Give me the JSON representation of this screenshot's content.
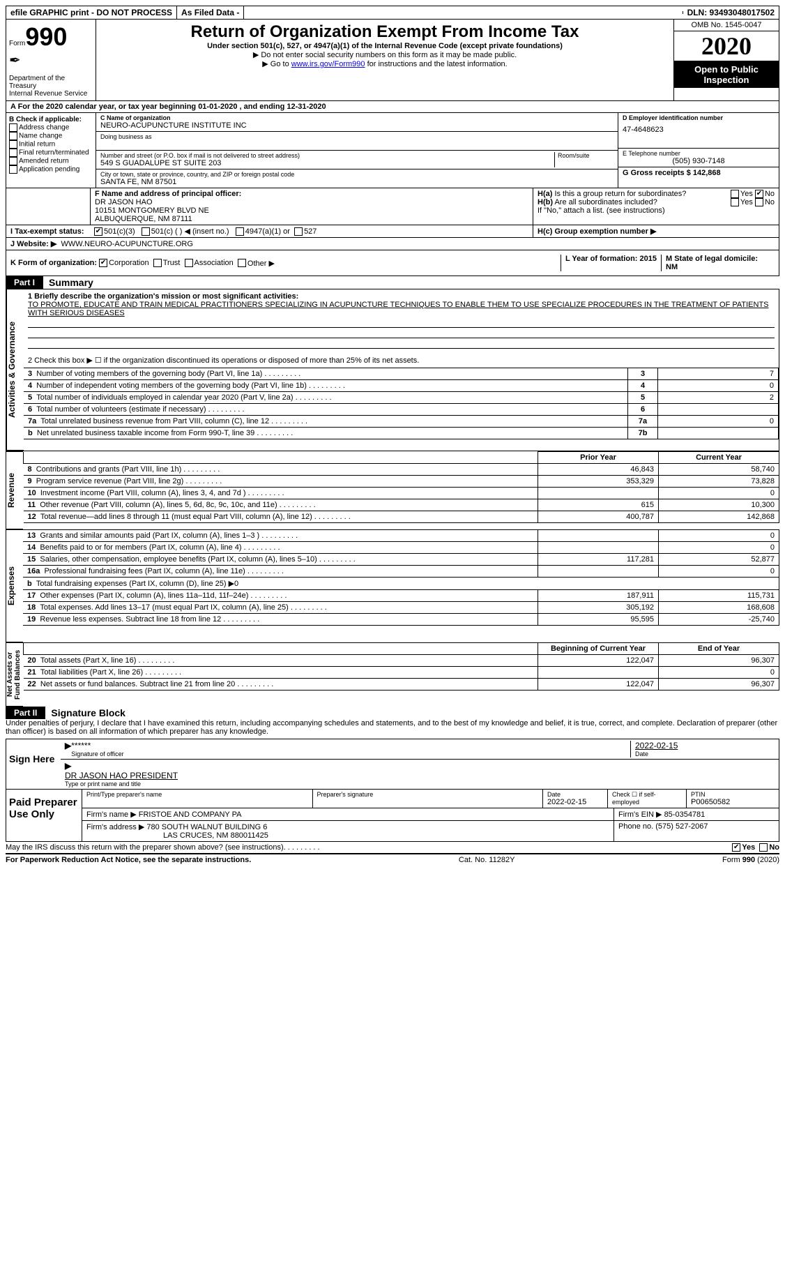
{
  "top": {
    "efile": "efile GRAPHIC print - DO NOT PROCESS",
    "asfiled": "As Filed Data -",
    "dln": "DLN: 93493048017502"
  },
  "header": {
    "form_word": "Form",
    "form_num": "990",
    "dept": "Department of the Treasury\nInternal Revenue Service",
    "title": "Return of Organization Exempt From Income Tax",
    "sub1": "Under section 501(c), 527, or 4947(a)(1) of the Internal Revenue Code (except private foundations)",
    "sub2": "▶ Do not enter social security numbers on this form as it may be made public.",
    "sub3_pre": "▶ Go to ",
    "sub3_link": "www.irs.gov/Form990",
    "sub3_post": " for instructions and the latest information.",
    "omb": "OMB No. 1545-0047",
    "year": "2020",
    "inspect": "Open to Public Inspection"
  },
  "secA": {
    "label": "A  For the 2020 calendar year, or tax year beginning 01-01-2020  , and ending 12-31-2020",
    "B_label": "B Check if applicable:",
    "B_opts": [
      "Address change",
      "Name change",
      "Initial return",
      "Final return/terminated",
      "Amended return",
      "Application pending"
    ],
    "C_name_label": "C Name of organization",
    "C_name": "NEURO-ACUPUNCTURE INSTITUTE INC",
    "dba_label": "Doing business as",
    "addr_label": "Number and street (or P.O. box if mail is not delivered to street address)",
    "room_label": "Room/suite",
    "addr": "549 S GUADALUPE ST SUITE 203",
    "city_label": "City or town, state or province, country, and ZIP or foreign postal code",
    "city": "SANTA FE, NM  87501",
    "D_label": "D Employer identification number",
    "D_val": "47-4648623",
    "E_label": "E Telephone number",
    "E_val": "(505) 930-7148",
    "G_label": "G Gross receipts $ 142,868",
    "F_label": "F  Name and address of principal officer:",
    "F_name": "DR JASON HAO",
    "F_addr1": "10151 MONTGOMERY BLVD NE",
    "F_addr2": "ALBUQUERQUE, NM  87111",
    "Ha_label": "H(a) Is this a group return for subordinates?",
    "Hb_label": "H(b) Are all subordinates included?",
    "H_note": "If \"No,\" attach a list. (see instructions)",
    "Hc_label": "H(c) Group exemption number ▶",
    "yes": "Yes",
    "no": "No"
  },
  "IJK": {
    "I_label": "I  Tax-exempt status:",
    "I_opts": [
      "501(c)(3)",
      "501(c) (  ) ◀ (insert no.)",
      "4947(a)(1) or",
      "527"
    ],
    "J_label": "J  Website: ▶",
    "J_val": "WWW.NEURO-ACUPUNCTURE.ORG",
    "K_label": "K Form of organization:",
    "K_opts": [
      "Corporation",
      "Trust",
      "Association",
      "Other ▶"
    ],
    "L_label": "L Year of formation: 2015",
    "M_label": "M State of legal domicile: NM"
  },
  "part1": {
    "tab": "Part I",
    "title": "Summary",
    "q1_label": "1 Briefly describe the organization's mission or most significant activities:",
    "q1_text": "TO PROMOTE, EDUCATE AND TRAIN MEDICAL PRACTITIONERS SPECIALIZING IN ACUPUNCTURE TECHNIQUES TO ENABLE THEM TO USE SPECIALIZE PROCEDURES IN THE TREATMENT OF PATIENTS WITH SERIOUS DISEASES",
    "q2": "2  Check this box ▶ ☐ if the organization discontinued its operations or disposed of more than 25% of its net assets.",
    "sideA": "Activities & Governance",
    "sideR": "Revenue",
    "sideE": "Expenses",
    "sideN": "Net Assets or Fund Balances",
    "rows_gov": [
      {
        "n": "3",
        "t": "Number of voting members of the governing body (Part VI, line 1a)",
        "box": "3",
        "v": "7"
      },
      {
        "n": "4",
        "t": "Number of independent voting members of the governing body (Part VI, line 1b)",
        "box": "4",
        "v": "0"
      },
      {
        "n": "5",
        "t": "Total number of individuals employed in calendar year 2020 (Part V, line 2a)",
        "box": "5",
        "v": "2"
      },
      {
        "n": "6",
        "t": "Total number of volunteers (estimate if necessary)",
        "box": "6",
        "v": ""
      },
      {
        "n": "7a",
        "t": "Total unrelated business revenue from Part VIII, column (C), line 12",
        "box": "7a",
        "v": "0"
      },
      {
        "n": "b",
        "t": "Net unrelated business taxable income from Form 990-T, line 39",
        "box": "7b",
        "v": ""
      }
    ],
    "col_prior": "Prior Year",
    "col_curr": "Current Year",
    "rows_rev": [
      {
        "n": "8",
        "t": "Contributions and grants (Part VIII, line 1h)",
        "p": "46,843",
        "c": "58,740"
      },
      {
        "n": "9",
        "t": "Program service revenue (Part VIII, line 2g)",
        "p": "353,329",
        "c": "73,828"
      },
      {
        "n": "10",
        "t": "Investment income (Part VIII, column (A), lines 3, 4, and 7d )",
        "p": "",
        "c": "0"
      },
      {
        "n": "11",
        "t": "Other revenue (Part VIII, column (A), lines 5, 6d, 8c, 9c, 10c, and 11e)",
        "p": "615",
        "c": "10,300"
      },
      {
        "n": "12",
        "t": "Total revenue—add lines 8 through 11 (must equal Part VIII, column (A), line 12)",
        "p": "400,787",
        "c": "142,868"
      }
    ],
    "rows_exp": [
      {
        "n": "13",
        "t": "Grants and similar amounts paid (Part IX, column (A), lines 1–3 )",
        "p": "",
        "c": "0"
      },
      {
        "n": "14",
        "t": "Benefits paid to or for members (Part IX, column (A), line 4)",
        "p": "",
        "c": "0"
      },
      {
        "n": "15",
        "t": "Salaries, other compensation, employee benefits (Part IX, column (A), lines 5–10)",
        "p": "117,281",
        "c": "52,877"
      },
      {
        "n": "16a",
        "t": "Professional fundraising fees (Part IX, column (A), line 11e)",
        "p": "",
        "c": "0"
      },
      {
        "n": "b",
        "t": "Total fundraising expenses (Part IX, column (D), line 25) ▶0",
        "p": "—",
        "c": "—"
      },
      {
        "n": "17",
        "t": "Other expenses (Part IX, column (A), lines 11a–11d, 11f–24e)",
        "p": "187,911",
        "c": "115,731"
      },
      {
        "n": "18",
        "t": "Total expenses. Add lines 13–17 (must equal Part IX, column (A), line 25)",
        "p": "305,192",
        "c": "168,608"
      },
      {
        "n": "19",
        "t": "Revenue less expenses. Subtract line 18 from line 12",
        "p": "95,595",
        "c": "-25,740"
      }
    ],
    "col_beg": "Beginning of Current Year",
    "col_end": "End of Year",
    "rows_net": [
      {
        "n": "20",
        "t": "Total assets (Part X, line 16)",
        "p": "122,047",
        "c": "96,307"
      },
      {
        "n": "21",
        "t": "Total liabilities (Part X, line 26)",
        "p": "",
        "c": "0"
      },
      {
        "n": "22",
        "t": "Net assets or fund balances. Subtract line 21 from line 20",
        "p": "122,047",
        "c": "96,307"
      }
    ]
  },
  "part2": {
    "tab": "Part II",
    "title": "Signature Block",
    "decl": "Under penalties of perjury, I declare that I have examined this return, including accompanying schedules and statements, and to the best of my knowledge and belief, it is true, correct, and complete. Declaration of preparer (other than officer) is based on all information of which preparer has any knowledge.",
    "sign_here": "Sign Here",
    "stars": "******",
    "sig_officer": "Signature of officer",
    "date": "Date",
    "date_val": "2022-02-15",
    "officer_name": "DR JASON HAO  PRESIDENT",
    "type_name": "Type or print name and title",
    "paid": "Paid Preparer Use Only",
    "prep_name_label": "Print/Type preparer's name",
    "prep_sig_label": "Preparer's signature",
    "prep_date_label": "Date",
    "prep_date": "2022-02-15",
    "check_self": "Check ☐ if self-employed",
    "ptin_label": "PTIN",
    "ptin": "P00650582",
    "firm_name_label": "Firm's name   ▶",
    "firm_name": "FRISTOE AND COMPANY PA",
    "firm_ein_label": "Firm's EIN ▶",
    "firm_ein": "85-0354781",
    "firm_addr_label": "Firm's address ▶",
    "firm_addr1": "780 SOUTH WALNUT BUILDING 6",
    "firm_addr2": "LAS CRUCES, NM  880011425",
    "phone_label": "Phone no.",
    "phone": "(575) 527-2067",
    "discuss": "May the IRS discuss this return with the preparer shown above? (see instructions)",
    "paperwork": "For Paperwork Reduction Act Notice, see the separate instructions.",
    "cat": "Cat. No. 11282Y",
    "form_foot": "Form 990 (2020)"
  }
}
